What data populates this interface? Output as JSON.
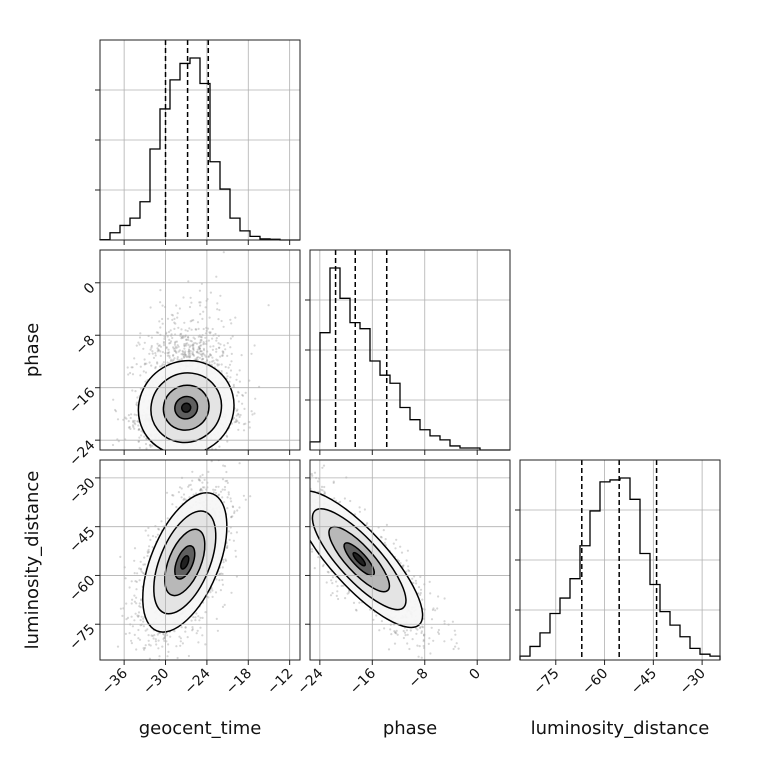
{
  "chart_data": {
    "type": "corner",
    "grid": true,
    "params": [
      "geocent_time",
      "phase",
      "luminosity_distance"
    ],
    "ranges": {
      "geocent_time": [
        -39.5,
        -10.5
      ],
      "phase": [
        -25.5,
        5.0
      ],
      "luminosity_distance": [
        -86.0,
        -24.5
      ]
    },
    "ticks": {
      "geocent_time": [
        -36,
        -30,
        -24,
        -18,
        -12
      ],
      "phase": [
        -24,
        -16,
        -8,
        0
      ],
      "luminosity_distance": [
        -75,
        -60,
        -45,
        -30
      ]
    },
    "axis_labels": {
      "geocent_time": "geocent_time",
      "phase": "phase",
      "luminosity_distance": "luminosity_distance"
    },
    "quantiles": {
      "geocent_time": [
        -30.0,
        -26.8,
        -23.8
      ],
      "phase": [
        -21.6,
        -18.6,
        -13.8
      ],
      "luminosity_distance": [
        -67.0,
        -55.5,
        -44.0
      ]
    },
    "histograms": {
      "geocent_time": {
        "bin_width": 1.45,
        "bins_start": -39.5,
        "counts": [
          0.002,
          0.04,
          0.08,
          0.12,
          0.21,
          0.5,
          0.72,
          0.88,
          0.97,
          1.0,
          0.86,
          0.43,
          0.28,
          0.12,
          0.05,
          0.02,
          0.006,
          0.004,
          0.0,
          0.0
        ]
      },
      "phase": {
        "bin_width": 1.525,
        "bins_start": -25.5,
        "counts": [
          0.04,
          0.58,
          0.9,
          0.75,
          0.63,
          0.6,
          0.44,
          0.37,
          0.33,
          0.21,
          0.15,
          0.1,
          0.07,
          0.05,
          0.02,
          0.01,
          0.01,
          0.0,
          0.0,
          0.0
        ]
      },
      "luminosity_distance": {
        "bin_width": 3.075,
        "bins_start": -86.0,
        "counts": [
          0.02,
          0.07,
          0.14,
          0.24,
          0.32,
          0.42,
          0.59,
          0.77,
          0.92,
          0.93,
          0.94,
          0.83,
          0.55,
          0.39,
          0.25,
          0.18,
          0.12,
          0.06,
          0.03,
          0.02
        ]
      }
    },
    "joint": [
      {
        "x": "geocent_time",
        "y": "phase",
        "center": [
          -27.0,
          -20.0
        ],
        "sigma": [
          3.3,
          3.8
        ],
        "rho": 0.05,
        "skew_y": 0.85
      },
      {
        "x": "geocent_time",
        "y": "luminosity_distance",
        "center": [
          -27.2,
          -56.0
        ],
        "sigma": [
          2.9,
          10.2
        ],
        "rho": 0.52,
        "skew_y": 0.0
      },
      {
        "x": "phase",
        "y": "luminosity_distance",
        "center": [
          -18.0,
          -55.0
        ],
        "sigma": [
          4.6,
          10.0
        ],
        "rho": -0.82,
        "skew_y": 0.0
      }
    ]
  }
}
